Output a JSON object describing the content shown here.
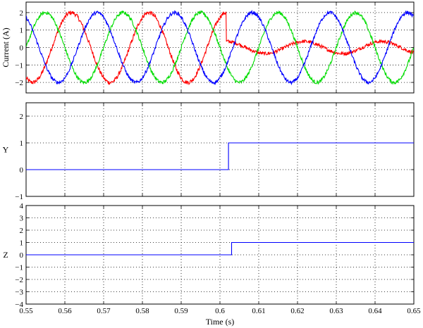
{
  "chart_data": [
    {
      "type": "line",
      "name": "current-plot",
      "title": "",
      "xlabel": "",
      "ylabel": "Current (A)",
      "xlim": [
        0.55,
        0.65
      ],
      "ylim": [
        -2.6,
        2.6
      ],
      "yticks": [
        -2,
        -1,
        0,
        1,
        2
      ],
      "ytick_labels": [
        "−2",
        "−1",
        "0",
        "1",
        "2"
      ],
      "xticks": [
        0.55,
        0.56,
        0.57,
        0.58,
        0.59,
        0.6,
        0.61,
        0.62,
        0.63,
        0.64,
        0.65
      ],
      "grid": true,
      "legend": "none",
      "frequency_hz": 50,
      "change_time": 0.6016,
      "series": [
        {
          "color": "#ff0000",
          "amplitude_before": 2.0,
          "amplitude_after": 0.35,
          "phase_deg": 60,
          "noise_before": 0.12,
          "noise_after": 0.1
        },
        {
          "color": "#00dd00",
          "amplitude_before": 2.0,
          "amplitude_after": 2.0,
          "phase_deg": 180,
          "noise_before": 0.1,
          "noise_after": 0.1
        },
        {
          "color": "#0000ff",
          "amplitude_before": 2.0,
          "amplitude_after": 2.0,
          "phase_deg": -60,
          "noise_before": 0.1,
          "noise_after": 0.1
        }
      ]
    },
    {
      "type": "line",
      "name": "y-plot",
      "title": "",
      "xlabel": "",
      "ylabel": "Y",
      "xlim": [
        0.55,
        0.65
      ],
      "ylim": [
        -1,
        2.5
      ],
      "yticks": [
        -1,
        0,
        1,
        2
      ],
      "ytick_labels": [
        "−1",
        "0",
        "1",
        "2"
      ],
      "xticks": [
        0.55,
        0.56,
        0.57,
        0.58,
        0.59,
        0.6,
        0.61,
        0.62,
        0.63,
        0.64,
        0.65
      ],
      "grid": true,
      "legend": "none",
      "series": [
        {
          "color": "#0000ff",
          "x": [
            0.55,
            0.6022,
            0.6022,
            0.65
          ],
          "y": [
            0,
            0,
            1,
            1
          ]
        }
      ]
    },
    {
      "type": "line",
      "name": "z-plot",
      "title": "",
      "xlabel": "Time (s)",
      "ylabel": "Z",
      "xlim": [
        0.55,
        0.65
      ],
      "ylim": [
        -4,
        4
      ],
      "yticks": [
        -4,
        -3,
        -2,
        -1,
        0,
        1,
        2,
        3,
        4
      ],
      "ytick_labels": [
        "−4",
        "−3",
        "−2",
        "−1",
        "0",
        "1",
        "2",
        "3",
        "4"
      ],
      "xticks": [
        0.55,
        0.56,
        0.57,
        0.58,
        0.59,
        0.6,
        0.61,
        0.62,
        0.63,
        0.64,
        0.65
      ],
      "xtick_labels": [
        "0.55",
        "0.56",
        "0.57",
        "0.58",
        "0.59",
        "0.6",
        "0.61",
        "0.62",
        "0.63",
        "0.64",
        "0.65"
      ],
      "grid": true,
      "legend": "none",
      "series": [
        {
          "color": "#0000ff",
          "x": [
            0.55,
            0.603,
            0.603,
            0.65
          ],
          "y": [
            0,
            0,
            1,
            1
          ]
        }
      ]
    }
  ]
}
